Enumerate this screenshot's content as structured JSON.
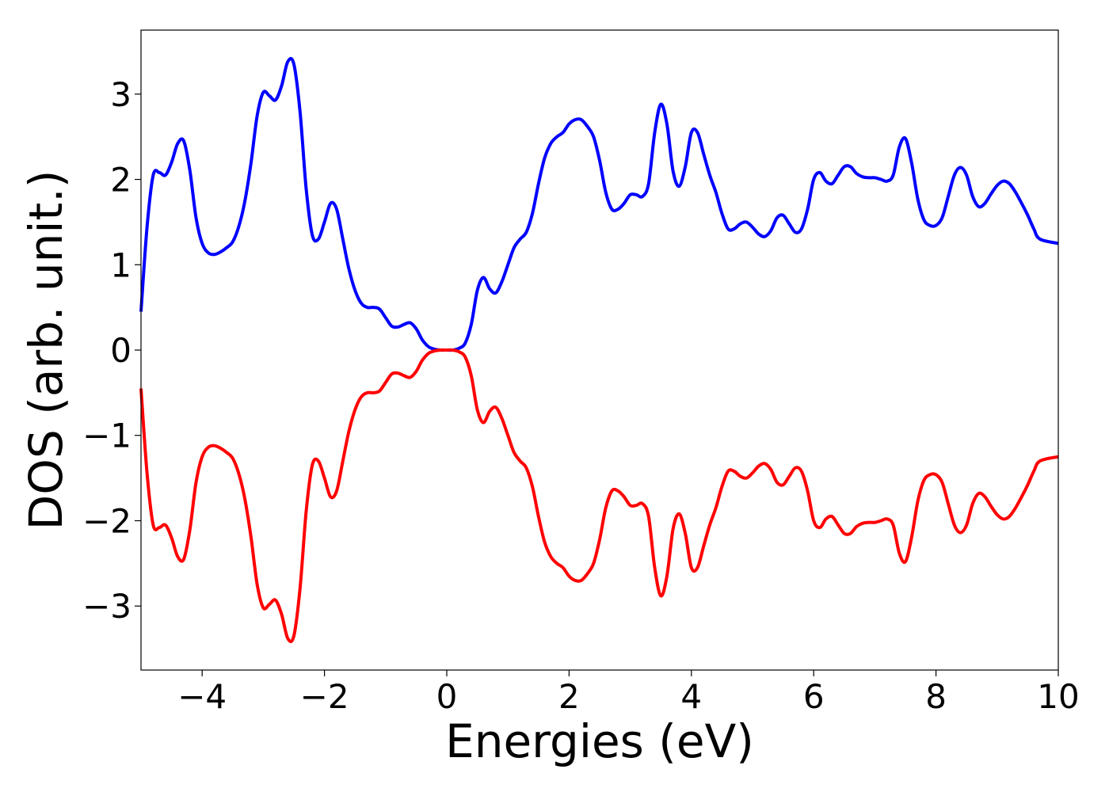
{
  "chart_data": {
    "type": "line",
    "title": "",
    "xlabel": "Energies (eV)",
    "ylabel": "DOS (arb. unit.)",
    "xlim": [
      -5,
      10
    ],
    "ylim": [
      -3.75,
      3.75
    ],
    "xticks": [
      -4,
      -2,
      0,
      2,
      4,
      6,
      8,
      10
    ],
    "xtick_labels": [
      "−4",
      "−2",
      "0",
      "2",
      "4",
      "6",
      "8",
      "10"
    ],
    "yticks": [
      -3,
      -2,
      -1,
      0,
      1,
      2,
      3
    ],
    "ytick_labels": [
      "−3",
      "−2",
      "−1",
      "0",
      "1",
      "2",
      "3"
    ],
    "grid": false,
    "legend": "none",
    "series": [
      {
        "color": "#0000ff",
        "points": [
          [
            -5.0,
            0.45
          ],
          [
            -4.9,
            1.45
          ],
          [
            -4.8,
            2.05
          ],
          [
            -4.7,
            2.08
          ],
          [
            -4.6,
            2.05
          ],
          [
            -4.5,
            2.2
          ],
          [
            -4.4,
            2.42
          ],
          [
            -4.3,
            2.45
          ],
          [
            -4.2,
            2.1
          ],
          [
            -4.1,
            1.55
          ],
          [
            -4.0,
            1.25
          ],
          [
            -3.9,
            1.14
          ],
          [
            -3.8,
            1.12
          ],
          [
            -3.7,
            1.15
          ],
          [
            -3.6,
            1.2
          ],
          [
            -3.5,
            1.27
          ],
          [
            -3.4,
            1.45
          ],
          [
            -3.3,
            1.75
          ],
          [
            -3.2,
            2.2
          ],
          [
            -3.1,
            2.75
          ],
          [
            -3.0,
            3.02
          ],
          [
            -2.9,
            2.98
          ],
          [
            -2.8,
            2.93
          ],
          [
            -2.7,
            3.1
          ],
          [
            -2.6,
            3.38
          ],
          [
            -2.5,
            3.35
          ],
          [
            -2.4,
            2.8
          ],
          [
            -2.3,
            1.9
          ],
          [
            -2.2,
            1.35
          ],
          [
            -2.1,
            1.3
          ],
          [
            -2.0,
            1.5
          ],
          [
            -1.9,
            1.72
          ],
          [
            -1.8,
            1.65
          ],
          [
            -1.7,
            1.3
          ],
          [
            -1.6,
            0.95
          ],
          [
            -1.5,
            0.7
          ],
          [
            -1.4,
            0.55
          ],
          [
            -1.3,
            0.5
          ],
          [
            -1.2,
            0.5
          ],
          [
            -1.1,
            0.48
          ],
          [
            -1.0,
            0.38
          ],
          [
            -0.9,
            0.28
          ],
          [
            -0.8,
            0.27
          ],
          [
            -0.7,
            0.3
          ],
          [
            -0.6,
            0.32
          ],
          [
            -0.5,
            0.25
          ],
          [
            -0.4,
            0.12
          ],
          [
            -0.3,
            0.04
          ],
          [
            -0.2,
            0.01
          ],
          [
            -0.1,
            0.0
          ],
          [
            0.0,
            0.0
          ],
          [
            0.1,
            0.0
          ],
          [
            0.2,
            0.02
          ],
          [
            0.3,
            0.08
          ],
          [
            0.4,
            0.3
          ],
          [
            0.5,
            0.7
          ],
          [
            0.6,
            0.85
          ],
          [
            0.7,
            0.72
          ],
          [
            0.8,
            0.67
          ],
          [
            0.9,
            0.8
          ],
          [
            1.0,
            1.0
          ],
          [
            1.1,
            1.2
          ],
          [
            1.2,
            1.3
          ],
          [
            1.3,
            1.38
          ],
          [
            1.4,
            1.6
          ],
          [
            1.5,
            1.95
          ],
          [
            1.6,
            2.25
          ],
          [
            1.7,
            2.42
          ],
          [
            1.8,
            2.5
          ],
          [
            1.9,
            2.55
          ],
          [
            2.0,
            2.65
          ],
          [
            2.1,
            2.7
          ],
          [
            2.2,
            2.7
          ],
          [
            2.3,
            2.62
          ],
          [
            2.4,
            2.5
          ],
          [
            2.5,
            2.22
          ],
          [
            2.6,
            1.85
          ],
          [
            2.7,
            1.65
          ],
          [
            2.8,
            1.65
          ],
          [
            2.9,
            1.72
          ],
          [
            3.0,
            1.82
          ],
          [
            3.1,
            1.82
          ],
          [
            3.2,
            1.8
          ],
          [
            3.3,
            1.95
          ],
          [
            3.4,
            2.55
          ],
          [
            3.5,
            2.88
          ],
          [
            3.6,
            2.65
          ],
          [
            3.7,
            2.1
          ],
          [
            3.8,
            1.92
          ],
          [
            3.9,
            2.15
          ],
          [
            4.0,
            2.55
          ],
          [
            4.1,
            2.55
          ],
          [
            4.2,
            2.3
          ],
          [
            4.3,
            2.05
          ],
          [
            4.4,
            1.85
          ],
          [
            4.5,
            1.6
          ],
          [
            4.6,
            1.42
          ],
          [
            4.7,
            1.42
          ],
          [
            4.8,
            1.48
          ],
          [
            4.9,
            1.5
          ],
          [
            5.0,
            1.44
          ],
          [
            5.1,
            1.36
          ],
          [
            5.2,
            1.33
          ],
          [
            5.3,
            1.4
          ],
          [
            5.4,
            1.55
          ],
          [
            5.5,
            1.58
          ],
          [
            5.6,
            1.48
          ],
          [
            5.7,
            1.38
          ],
          [
            5.8,
            1.42
          ],
          [
            5.9,
            1.65
          ],
          [
            6.0,
            2.0
          ],
          [
            6.1,
            2.08
          ],
          [
            6.2,
            1.98
          ],
          [
            6.3,
            1.95
          ],
          [
            6.4,
            2.05
          ],
          [
            6.5,
            2.15
          ],
          [
            6.6,
            2.15
          ],
          [
            6.7,
            2.07
          ],
          [
            6.8,
            2.03
          ],
          [
            6.9,
            2.02
          ],
          [
            7.0,
            2.02
          ],
          [
            7.1,
            2.0
          ],
          [
            7.2,
            1.98
          ],
          [
            7.3,
            2.05
          ],
          [
            7.4,
            2.38
          ],
          [
            7.5,
            2.48
          ],
          [
            7.6,
            2.2
          ],
          [
            7.7,
            1.78
          ],
          [
            7.8,
            1.53
          ],
          [
            7.9,
            1.46
          ],
          [
            8.0,
            1.46
          ],
          [
            8.1,
            1.55
          ],
          [
            8.2,
            1.8
          ],
          [
            8.3,
            2.05
          ],
          [
            8.4,
            2.14
          ],
          [
            8.5,
            2.05
          ],
          [
            8.6,
            1.8
          ],
          [
            8.7,
            1.68
          ],
          [
            8.8,
            1.72
          ],
          [
            8.9,
            1.83
          ],
          [
            9.0,
            1.93
          ],
          [
            9.1,
            1.98
          ],
          [
            9.2,
            1.95
          ],
          [
            9.3,
            1.85
          ],
          [
            9.4,
            1.72
          ],
          [
            9.5,
            1.58
          ],
          [
            9.6,
            1.42
          ],
          [
            9.7,
            1.3
          ],
          [
            10.0,
            1.25
          ]
        ]
      },
      {
        "color": "#ff0000",
        "points": [
          [
            -5.0,
            -0.45
          ],
          [
            -4.9,
            -1.45
          ],
          [
            -4.8,
            -2.05
          ],
          [
            -4.7,
            -2.08
          ],
          [
            -4.6,
            -2.05
          ],
          [
            -4.5,
            -2.2
          ],
          [
            -4.4,
            -2.42
          ],
          [
            -4.3,
            -2.45
          ],
          [
            -4.2,
            -2.1
          ],
          [
            -4.1,
            -1.55
          ],
          [
            -4.0,
            -1.25
          ],
          [
            -3.9,
            -1.14
          ],
          [
            -3.8,
            -1.12
          ],
          [
            -3.7,
            -1.15
          ],
          [
            -3.6,
            -1.2
          ],
          [
            -3.5,
            -1.27
          ],
          [
            -3.4,
            -1.45
          ],
          [
            -3.3,
            -1.75
          ],
          [
            -3.2,
            -2.2
          ],
          [
            -3.1,
            -2.75
          ],
          [
            -3.0,
            -3.02
          ],
          [
            -2.9,
            -2.98
          ],
          [
            -2.8,
            -2.93
          ],
          [
            -2.7,
            -3.1
          ],
          [
            -2.6,
            -3.38
          ],
          [
            -2.5,
            -3.35
          ],
          [
            -2.4,
            -2.8
          ],
          [
            -2.3,
            -1.9
          ],
          [
            -2.2,
            -1.35
          ],
          [
            -2.1,
            -1.3
          ],
          [
            -2.0,
            -1.5
          ],
          [
            -1.9,
            -1.72
          ],
          [
            -1.8,
            -1.65
          ],
          [
            -1.7,
            -1.3
          ],
          [
            -1.6,
            -0.95
          ],
          [
            -1.5,
            -0.7
          ],
          [
            -1.4,
            -0.55
          ],
          [
            -1.3,
            -0.5
          ],
          [
            -1.2,
            -0.5
          ],
          [
            -1.1,
            -0.48
          ],
          [
            -1.0,
            -0.38
          ],
          [
            -0.9,
            -0.28
          ],
          [
            -0.8,
            -0.27
          ],
          [
            -0.7,
            -0.3
          ],
          [
            -0.6,
            -0.32
          ],
          [
            -0.5,
            -0.25
          ],
          [
            -0.4,
            -0.12
          ],
          [
            -0.3,
            -0.04
          ],
          [
            -0.2,
            -0.01
          ],
          [
            -0.1,
            0.0
          ],
          [
            0.0,
            0.0
          ],
          [
            0.1,
            0.0
          ],
          [
            0.2,
            -0.02
          ],
          [
            0.3,
            -0.08
          ],
          [
            0.4,
            -0.3
          ],
          [
            0.5,
            -0.7
          ],
          [
            0.6,
            -0.85
          ],
          [
            0.7,
            -0.72
          ],
          [
            0.8,
            -0.67
          ],
          [
            0.9,
            -0.8
          ],
          [
            1.0,
            -1.0
          ],
          [
            1.1,
            -1.2
          ],
          [
            1.2,
            -1.3
          ],
          [
            1.3,
            -1.38
          ],
          [
            1.4,
            -1.6
          ],
          [
            1.5,
            -1.95
          ],
          [
            1.6,
            -2.25
          ],
          [
            1.7,
            -2.42
          ],
          [
            1.8,
            -2.5
          ],
          [
            1.9,
            -2.55
          ],
          [
            2.0,
            -2.65
          ],
          [
            2.1,
            -2.7
          ],
          [
            2.2,
            -2.7
          ],
          [
            2.3,
            -2.62
          ],
          [
            2.4,
            -2.5
          ],
          [
            2.5,
            -2.22
          ],
          [
            2.6,
            -1.85
          ],
          [
            2.7,
            -1.65
          ],
          [
            2.8,
            -1.65
          ],
          [
            2.9,
            -1.72
          ],
          [
            3.0,
            -1.82
          ],
          [
            3.1,
            -1.82
          ],
          [
            3.2,
            -1.8
          ],
          [
            3.3,
            -1.95
          ],
          [
            3.4,
            -2.55
          ],
          [
            3.5,
            -2.88
          ],
          [
            3.6,
            -2.65
          ],
          [
            3.7,
            -2.1
          ],
          [
            3.8,
            -1.92
          ],
          [
            3.9,
            -2.15
          ],
          [
            4.0,
            -2.55
          ],
          [
            4.1,
            -2.55
          ],
          [
            4.2,
            -2.3
          ],
          [
            4.3,
            -2.05
          ],
          [
            4.4,
            -1.85
          ],
          [
            4.5,
            -1.6
          ],
          [
            4.6,
            -1.42
          ],
          [
            4.7,
            -1.42
          ],
          [
            4.8,
            -1.48
          ],
          [
            4.9,
            -1.5
          ],
          [
            5.0,
            -1.44
          ],
          [
            5.1,
            -1.36
          ],
          [
            5.2,
            -1.33
          ],
          [
            5.3,
            -1.4
          ],
          [
            5.4,
            -1.55
          ],
          [
            5.5,
            -1.58
          ],
          [
            5.6,
            -1.48
          ],
          [
            5.7,
            -1.38
          ],
          [
            5.8,
            -1.42
          ],
          [
            5.9,
            -1.65
          ],
          [
            6.0,
            -2.0
          ],
          [
            6.1,
            -2.08
          ],
          [
            6.2,
            -1.98
          ],
          [
            6.3,
            -1.95
          ],
          [
            6.4,
            -2.05
          ],
          [
            6.5,
            -2.15
          ],
          [
            6.6,
            -2.15
          ],
          [
            6.7,
            -2.07
          ],
          [
            6.8,
            -2.03
          ],
          [
            6.9,
            -2.02
          ],
          [
            7.0,
            -2.02
          ],
          [
            7.1,
            -2.0
          ],
          [
            7.2,
            -1.98
          ],
          [
            7.3,
            -2.05
          ],
          [
            7.4,
            -2.38
          ],
          [
            7.5,
            -2.48
          ],
          [
            7.6,
            -2.2
          ],
          [
            7.7,
            -1.78
          ],
          [
            7.8,
            -1.53
          ],
          [
            7.9,
            -1.46
          ],
          [
            8.0,
            -1.46
          ],
          [
            8.1,
            -1.55
          ],
          [
            8.2,
            -1.8
          ],
          [
            8.3,
            -2.05
          ],
          [
            8.4,
            -2.14
          ],
          [
            8.5,
            -2.05
          ],
          [
            8.6,
            -1.8
          ],
          [
            8.7,
            -1.68
          ],
          [
            8.8,
            -1.72
          ],
          [
            8.9,
            -1.83
          ],
          [
            9.0,
            -1.93
          ],
          [
            9.1,
            -1.98
          ],
          [
            9.2,
            -1.95
          ],
          [
            9.3,
            -1.85
          ],
          [
            9.4,
            -1.72
          ],
          [
            9.5,
            -1.58
          ],
          [
            9.6,
            -1.42
          ],
          [
            9.7,
            -1.3
          ],
          [
            10.0,
            -1.25
          ]
        ]
      }
    ]
  }
}
